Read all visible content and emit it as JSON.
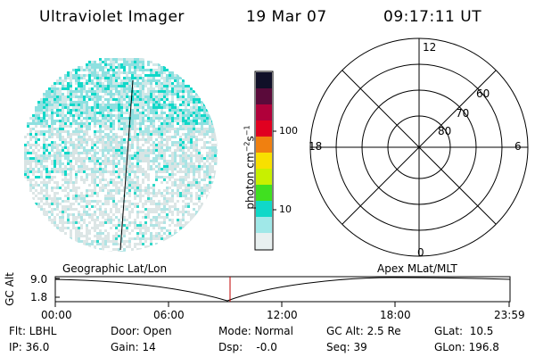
{
  "header": {
    "instrument": "Ultraviolet Imager",
    "date": "19 Mar 07",
    "time": "09:17:11 UT"
  },
  "colorbar": {
    "unit_label": "photon cm^-2 s^-1",
    "ticks": [
      "100",
      "10"
    ],
    "colors": [
      "#101028",
      "#5a0a3a",
      "#b0003a",
      "#e00020",
      "#f08010",
      "#f8e000",
      "#c8f000",
      "#40e020",
      "#10d8c8",
      "#a0e8e8",
      "#e8f0f0"
    ]
  },
  "polar_grid": {
    "mlt_labels": {
      "top": "12",
      "left": "18",
      "right": "6",
      "bottom": "0"
    },
    "lat_labels": [
      "60",
      "70",
      "80"
    ]
  },
  "timeline": {
    "ylabel": "GC Alt",
    "y_ticks": [
      "9.0",
      "1.8"
    ],
    "left_title": "Geographic Lat/Lon",
    "right_title": "Apex MLat/MLT",
    "x_ticks": [
      "00:00",
      "06:00",
      "12:00",
      "18:00",
      "23:59"
    ],
    "marker_color": "#c00000"
  },
  "info": {
    "row1": {
      "filter": "Flt: LBHL",
      "door": "Door: Open",
      "mode": "Mode: Normal",
      "gc_alt": "GC Alt: 2.5 Re",
      "glat": "GLat:  10.5"
    },
    "row2": {
      "ip": "IP: 36.0",
      "gain": "Gain: 14",
      "dsp": "Dsp:    -0.0",
      "seq": "Seq: 39",
      "glon": "GLon: 196.8"
    }
  }
}
